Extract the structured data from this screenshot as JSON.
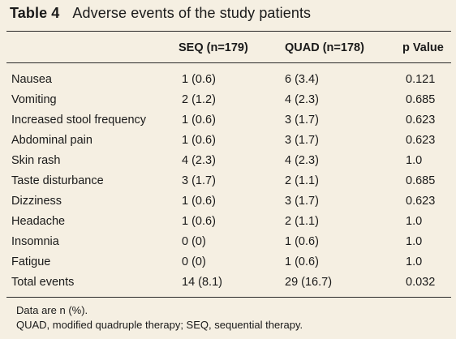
{
  "title": {
    "label": "Table 4",
    "text": "Adverse events of the study patients"
  },
  "table": {
    "headers": [
      "",
      "SEQ (n=179)",
      "QUAD (n=178)",
      "p Value"
    ],
    "rows": [
      [
        "Nausea",
        "1 (0.6)",
        "6 (3.4)",
        "0.121"
      ],
      [
        "Vomiting",
        "2 (1.2)",
        "4 (2.3)",
        "0.685"
      ],
      [
        "Increased stool frequency",
        "1 (0.6)",
        "3 (1.7)",
        "0.623"
      ],
      [
        "Abdominal pain",
        "1 (0.6)",
        "3 (1.7)",
        "0.623"
      ],
      [
        "Skin rash",
        "4 (2.3)",
        "4 (2.3)",
        "1.0"
      ],
      [
        "Taste disturbance",
        "3 (1.7)",
        "2 (1.1)",
        "0.685"
      ],
      [
        "Dizziness",
        "1 (0.6)",
        "3 (1.7)",
        "0.623"
      ],
      [
        "Headache",
        "1 (0.6)",
        "2 (1.1)",
        "1.0"
      ],
      [
        "Insomnia",
        "0 (0)",
        "1 (0.6)",
        "1.0"
      ],
      [
        "Fatigue",
        "0 (0)",
        "1 (0.6)",
        "1.0"
      ],
      [
        "Total events",
        "14 (8.1)",
        "29 (16.7)",
        "0.032"
      ]
    ]
  },
  "footnotes": [
    "Data are n (%).",
    "QUAD, modified quadruple therapy; SEQ, sequential therapy."
  ]
}
